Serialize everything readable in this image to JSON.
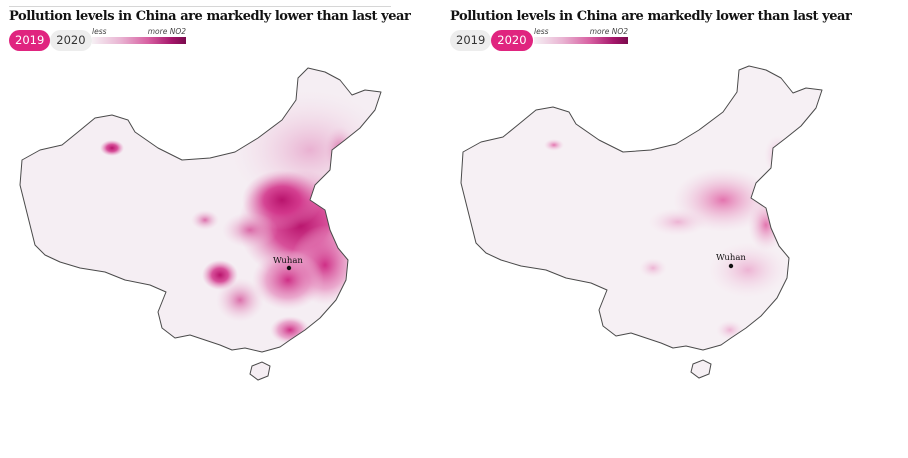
{
  "panels": [
    {
      "title": "Pollution levels in China are markedly lower than last year",
      "toggle": [
        {
          "label": "2019",
          "active": true
        },
        {
          "label": "2020",
          "active": false
        }
      ],
      "legend": {
        "less": "less",
        "more": "more NO2"
      },
      "city": "Wuhan"
    },
    {
      "title": "Pollution levels in China are markedly lower than last year",
      "toggle": [
        {
          "label": "2019",
          "active": false
        },
        {
          "label": "2020",
          "active": true
        }
      ],
      "legend": {
        "less": "less",
        "more": "more NO2"
      },
      "city": "Wuhan"
    }
  ],
  "colors": {
    "accent": "#e0247f",
    "land": "#f5eef3",
    "border": "#4a4a4a",
    "gradient": [
      "#f6f0f4",
      "#e9b5d3",
      "#d75fa1",
      "#a4166a",
      "#7a0b4d"
    ]
  },
  "icons": [
    "city-marker-icon"
  ]
}
